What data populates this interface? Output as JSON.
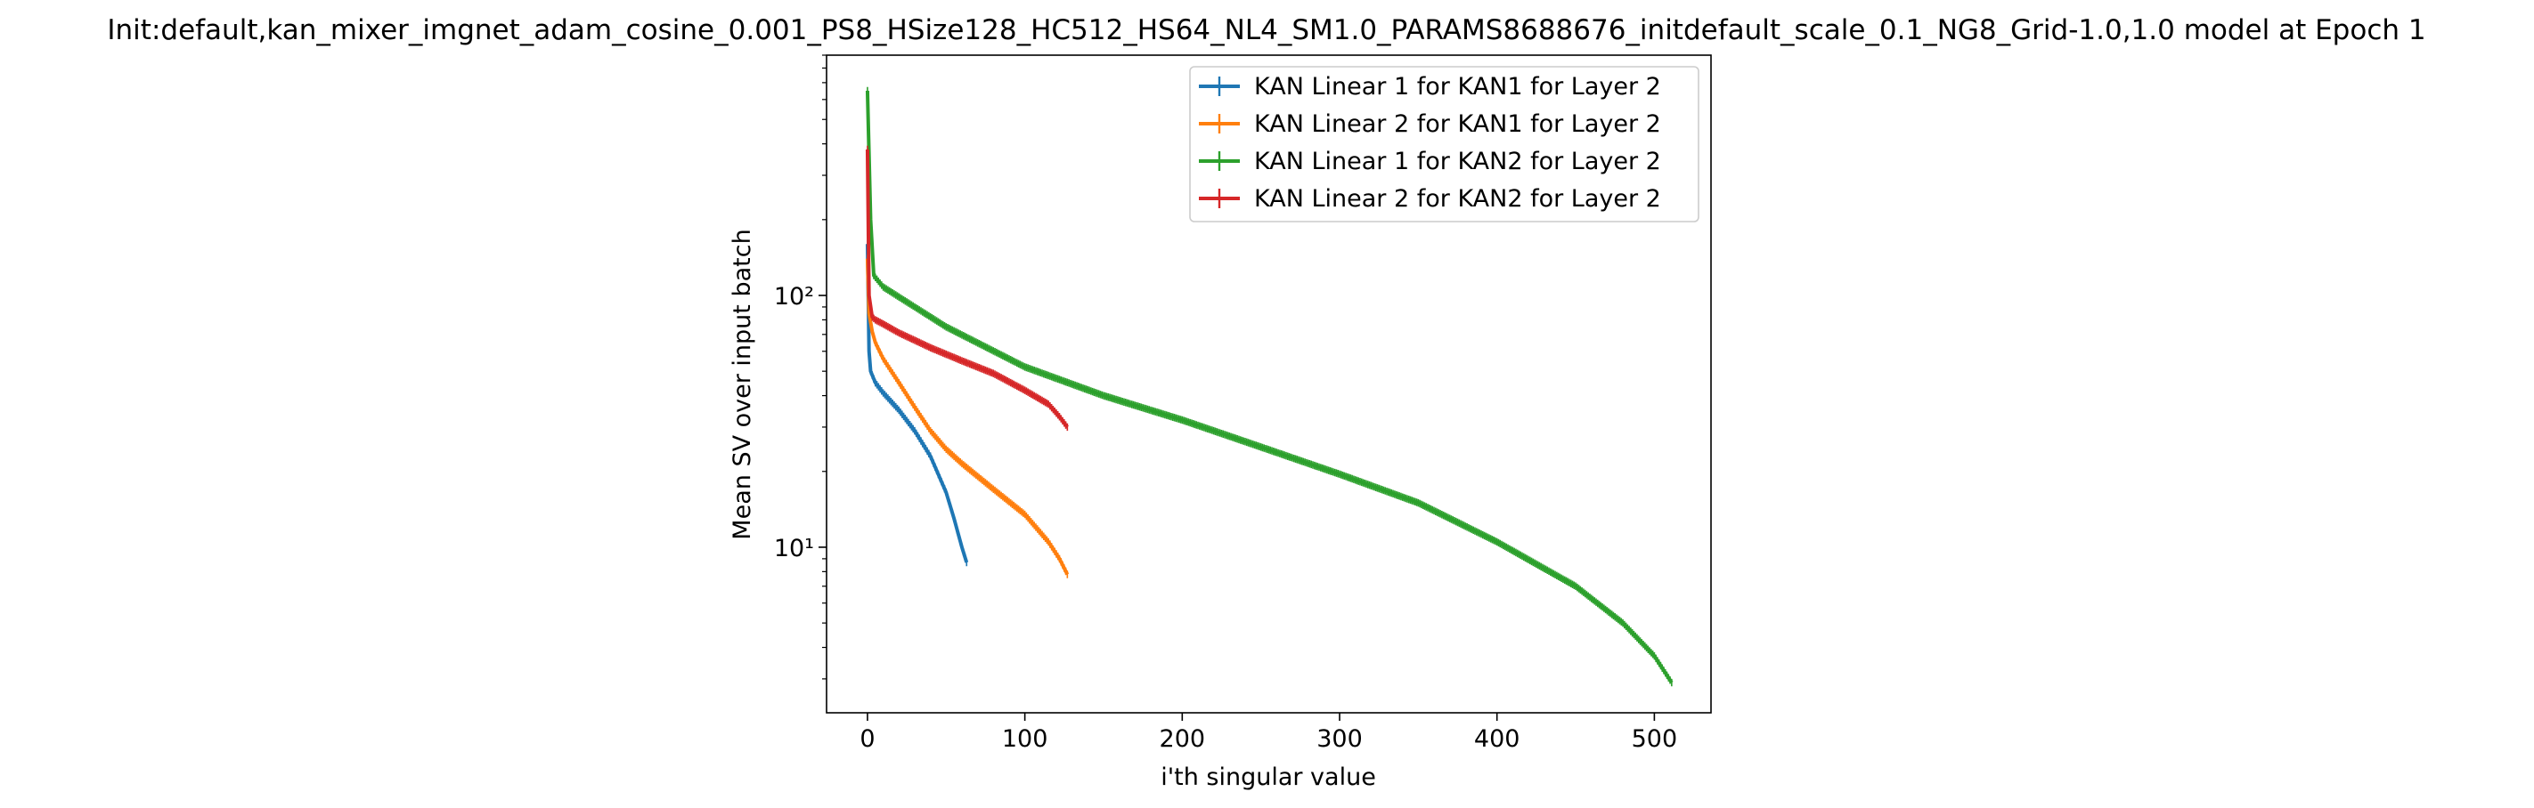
{
  "chart_data": {
    "type": "line",
    "title": "Init:default,kan_mixer_imgnet_adam_cosine_0.001_PS8_HSize128_HC512_HS64_NL4_SM1.0_PARAMS8688676_initdefault_scale_0.1_NG8_Grid-1.0,1.0 model at Epoch 1",
    "xlabel": "i'th singular value",
    "ylabel": "Mean SV over input batch",
    "xlim": [
      -26,
      536
    ],
    "ylim": [
      2.2,
      900
    ],
    "yscale": "log",
    "grid": false,
    "legend_position": "top-right",
    "x_ticks": [
      0,
      100,
      200,
      300,
      400,
      500
    ],
    "x_tick_labels": [
      "0",
      "100",
      "200",
      "300",
      "400",
      "500"
    ],
    "y_ticks": [
      10,
      100
    ],
    "y_tick_labels": [
      "10¹",
      "10²"
    ],
    "error_bars": true,
    "series": [
      {
        "name": "KAN Linear 1 for KAN1 for Layer 2",
        "color": "#1f77b4",
        "n_points": 64,
        "knots": [
          [
            0,
            160
          ],
          [
            1,
            60
          ],
          [
            2,
            50
          ],
          [
            5,
            45
          ],
          [
            10,
            41
          ],
          [
            20,
            35
          ],
          [
            30,
            29
          ],
          [
            40,
            23
          ],
          [
            50,
            16.5
          ],
          [
            55,
            13
          ],
          [
            60,
            10
          ],
          [
            63,
            8.7
          ]
        ]
      },
      {
        "name": "KAN Linear 2 for KAN1 for Layer 2",
        "color": "#ff7f0e",
        "n_points": 128,
        "knots": [
          [
            0,
            140
          ],
          [
            1,
            85
          ],
          [
            3,
            72
          ],
          [
            5,
            65
          ],
          [
            10,
            56
          ],
          [
            20,
            45
          ],
          [
            30,
            36
          ],
          [
            40,
            29
          ],
          [
            50,
            24.5
          ],
          [
            60,
            21.5
          ],
          [
            80,
            17
          ],
          [
            100,
            13.5
          ],
          [
            115,
            10.5
          ],
          [
            122,
            9
          ],
          [
            127,
            7.8
          ]
        ]
      },
      {
        "name": "KAN Linear 1 for KAN2 for Layer 2",
        "color": "#2ca02c",
        "n_points": 512,
        "knots": [
          [
            0,
            650
          ],
          [
            2,
            200
          ],
          [
            4,
            120
          ],
          [
            10,
            108
          ],
          [
            50,
            75
          ],
          [
            100,
            52
          ],
          [
            150,
            40
          ],
          [
            200,
            32
          ],
          [
            250,
            25
          ],
          [
            300,
            19.5
          ],
          [
            350,
            15
          ],
          [
            400,
            10.5
          ],
          [
            450,
            7
          ],
          [
            480,
            5
          ],
          [
            500,
            3.7
          ],
          [
            511,
            2.9
          ]
        ]
      },
      {
        "name": "KAN Linear 2 for KAN2 for Layer 2",
        "color": "#d62728",
        "n_points": 128,
        "knots": [
          [
            0,
            380
          ],
          [
            1,
            100
          ],
          [
            3,
            82
          ],
          [
            5,
            80
          ],
          [
            10,
            77
          ],
          [
            20,
            71
          ],
          [
            40,
            62
          ],
          [
            60,
            55
          ],
          [
            80,
            49
          ],
          [
            100,
            42
          ],
          [
            115,
            37
          ],
          [
            122,
            33
          ],
          [
            127,
            30
          ]
        ]
      }
    ]
  }
}
